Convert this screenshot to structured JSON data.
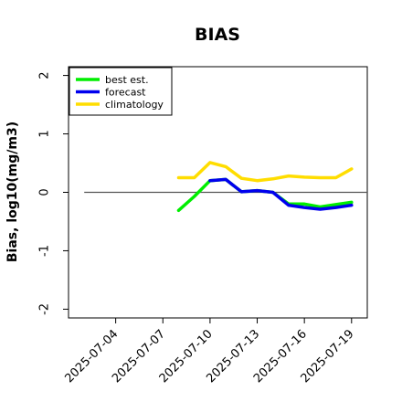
{
  "chart_data": {
    "type": "line",
    "title": "BIAS",
    "xlabel": "",
    "ylabel": "Bias, log10(mg/m3)",
    "ylim": [
      -2.15,
      2.15
    ],
    "yticks": [
      -2,
      -1,
      0,
      1,
      2
    ],
    "xlim": [
      "2025-07-01",
      "2025-07-20"
    ],
    "xticks": [
      "2025-07-04",
      "2025-07-07",
      "2025-07-10",
      "2025-07-13",
      "2025-07-16",
      "2025-07-19"
    ],
    "highlight_tick": "2025-07-10",
    "highlight_color": "#228b22",
    "zero_line": true,
    "legend_position": "top-left",
    "series": [
      {
        "name": "best est.",
        "color": "#00ee00",
        "x": [
          "2025-07-08",
          "2025-07-09",
          "2025-07-10",
          "2025-07-11",
          "2025-07-12",
          "2025-07-13",
          "2025-07-14",
          "2025-07-15",
          "2025-07-16",
          "2025-07-17",
          "2025-07-18",
          "2025-07-19"
        ],
        "values": [
          -0.31,
          -0.07,
          0.2,
          0.22,
          0.01,
          0.03,
          0.0,
          -0.2,
          -0.2,
          -0.25,
          -0.21,
          -0.17
        ]
      },
      {
        "name": "forecast",
        "color": "#0000ee",
        "x": [
          "2025-07-10",
          "2025-07-11",
          "2025-07-12",
          "2025-07-13",
          "2025-07-14",
          "2025-07-15",
          "2025-07-16",
          "2025-07-17",
          "2025-07-18",
          "2025-07-19"
        ],
        "values": [
          0.2,
          0.22,
          0.01,
          0.03,
          0.0,
          -0.22,
          -0.26,
          -0.29,
          -0.26,
          -0.22
        ]
      },
      {
        "name": "climatology",
        "color": "#ffdd00",
        "x": [
          "2025-07-08",
          "2025-07-09",
          "2025-07-10",
          "2025-07-11",
          "2025-07-12",
          "2025-07-13",
          "2025-07-14",
          "2025-07-15",
          "2025-07-16",
          "2025-07-17",
          "2025-07-18",
          "2025-07-19"
        ],
        "values": [
          0.25,
          0.25,
          0.51,
          0.44,
          0.24,
          0.2,
          0.23,
          0.28,
          0.26,
          0.25,
          0.25,
          0.4
        ]
      }
    ]
  }
}
